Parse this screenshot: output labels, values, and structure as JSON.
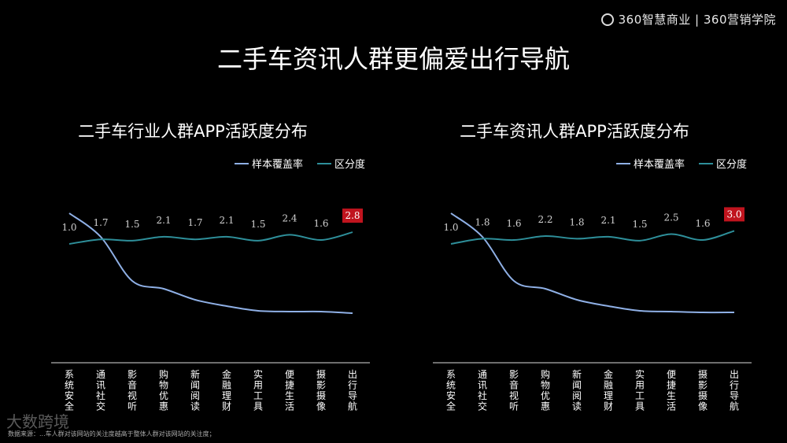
{
  "header": {
    "logo_text": "360智慧商业 | 360营销学院",
    "title": "二手车资讯人群更偏爱出行导航"
  },
  "footer": {
    "note": "数据来源：...车人群对该网站的关注度越高于整体人群对该网站的关注度；",
    "watermark": "大数跨境"
  },
  "legend_labels": [
    "样本覆盖率",
    "区分度"
  ],
  "colors": {
    "coverage": "#8fb0e6",
    "distinction": "#2e8f9a",
    "highlight": "#c0141e",
    "axis": "#dddddd"
  },
  "chart_data": [
    {
      "type": "line",
      "title": "二手车行业人群APP活跃度分布",
      "categories": [
        "系统安全",
        "通讯社交",
        "影音视听",
        "购物优惠",
        "新闻阅读",
        "金融理财",
        "实用工具",
        "便捷生活",
        "摄影摄像",
        "出行导航"
      ],
      "series": [
        {
          "name": "样本覆盖率",
          "values": [
            0.95,
            0.8,
            0.52,
            0.47,
            0.4,
            0.36,
            0.33,
            0.325,
            0.325,
            0.315
          ]
        },
        {
          "name": "区分度",
          "values": [
            1.0,
            1.7,
            1.5,
            2.1,
            1.7,
            2.1,
            1.5,
            2.4,
            1.6,
            2.8
          ],
          "labels": [
            "1.0",
            "1.7",
            "1.5",
            "2.1",
            "1.7",
            "2.1",
            "1.5",
            "2.4",
            "1.6",
            "2.8"
          ]
        }
      ],
      "highlight_index": 9,
      "legend_position": "top-right",
      "grid": false
    },
    {
      "type": "line",
      "title": "二手车资讯人群APP活跃度分布",
      "categories": [
        "系统安全",
        "通讯社交",
        "影音视听",
        "购物优惠",
        "新闻阅读",
        "金融理财",
        "实用工具",
        "便捷生活",
        "摄影摄像",
        "出行导航"
      ],
      "series": [
        {
          "name": "样本覆盖率",
          "values": [
            0.95,
            0.8,
            0.52,
            0.47,
            0.4,
            0.36,
            0.33,
            0.325,
            0.32,
            0.32
          ]
        },
        {
          "name": "区分度",
          "values": [
            1.0,
            1.8,
            1.6,
            2.2,
            1.8,
            2.1,
            1.5,
            2.5,
            1.6,
            3.0
          ],
          "labels": [
            "1.0",
            "1.8",
            "1.6",
            "2.2",
            "1.8",
            "2.1",
            "1.5",
            "2.5",
            "1.6",
            "3.0"
          ]
        }
      ],
      "highlight_index": 9,
      "legend_position": "top-right",
      "grid": false
    }
  ]
}
